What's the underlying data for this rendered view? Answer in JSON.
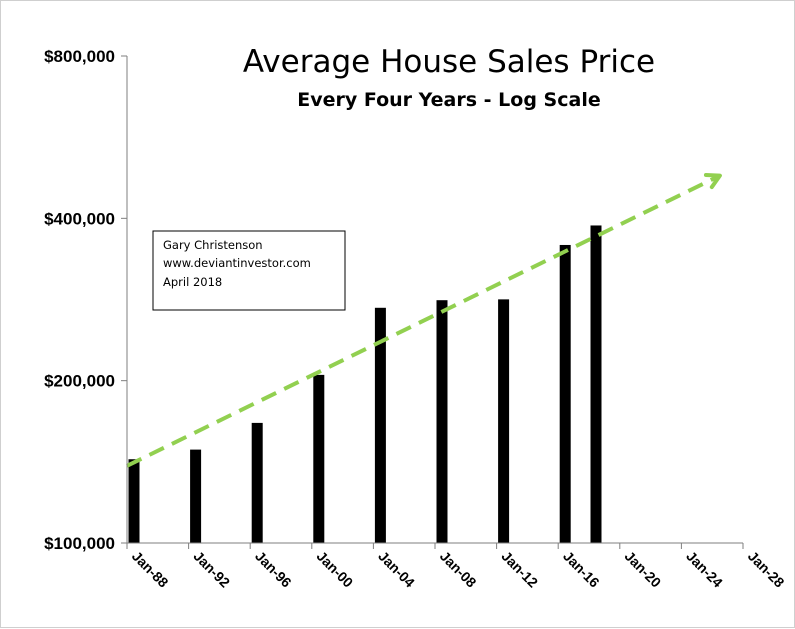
{
  "chart_data": {
    "type": "bar",
    "title": "Average House Sales Price",
    "subtitle": "Every Four Years - Log Scale",
    "y_scale": "log",
    "ylim": [
      100000,
      800000
    ],
    "y_ticks": [
      100000,
      200000,
      400000,
      800000
    ],
    "y_tick_labels": [
      "$100,000",
      "$200,000",
      "$400,000",
      "$800,000"
    ],
    "x_tick_labels": [
      "Jan-88",
      "Jan-92",
      "Jan-96",
      "Jan-00",
      "Jan-04",
      "Jan-08",
      "Jan-12",
      "Jan-16",
      "Jan-20",
      "Jan-24",
      "Jan-28"
    ],
    "xlim": [
      "1988-01",
      "2028-01"
    ],
    "bars": [
      {
        "date": "1988-01",
        "value": 143000
      },
      {
        "date": "1992-01",
        "value": 149000
      },
      {
        "date": "1996-01",
        "value": 167000
      },
      {
        "date": "2000-01",
        "value": 205000
      },
      {
        "date": "2004-01",
        "value": 273000
      },
      {
        "date": "2008-01",
        "value": 282000
      },
      {
        "date": "2012-01",
        "value": 283000
      },
      {
        "date": "2016-01",
        "value": 357000
      },
      {
        "date": "2018-01",
        "value": 388000
      }
    ],
    "trend_line": {
      "style": "dashed-arrow",
      "color": "#92d050",
      "start": {
        "date": "1988-01",
        "value": 139000
      },
      "end": {
        "date": "2026-07",
        "value": 480000
      }
    },
    "bar_color": "#000000",
    "grid": false,
    "legend": "none"
  },
  "annotation": {
    "lines": [
      "Gary Christenson",
      "www.deviantinvestor.com",
      "April 2018"
    ]
  }
}
